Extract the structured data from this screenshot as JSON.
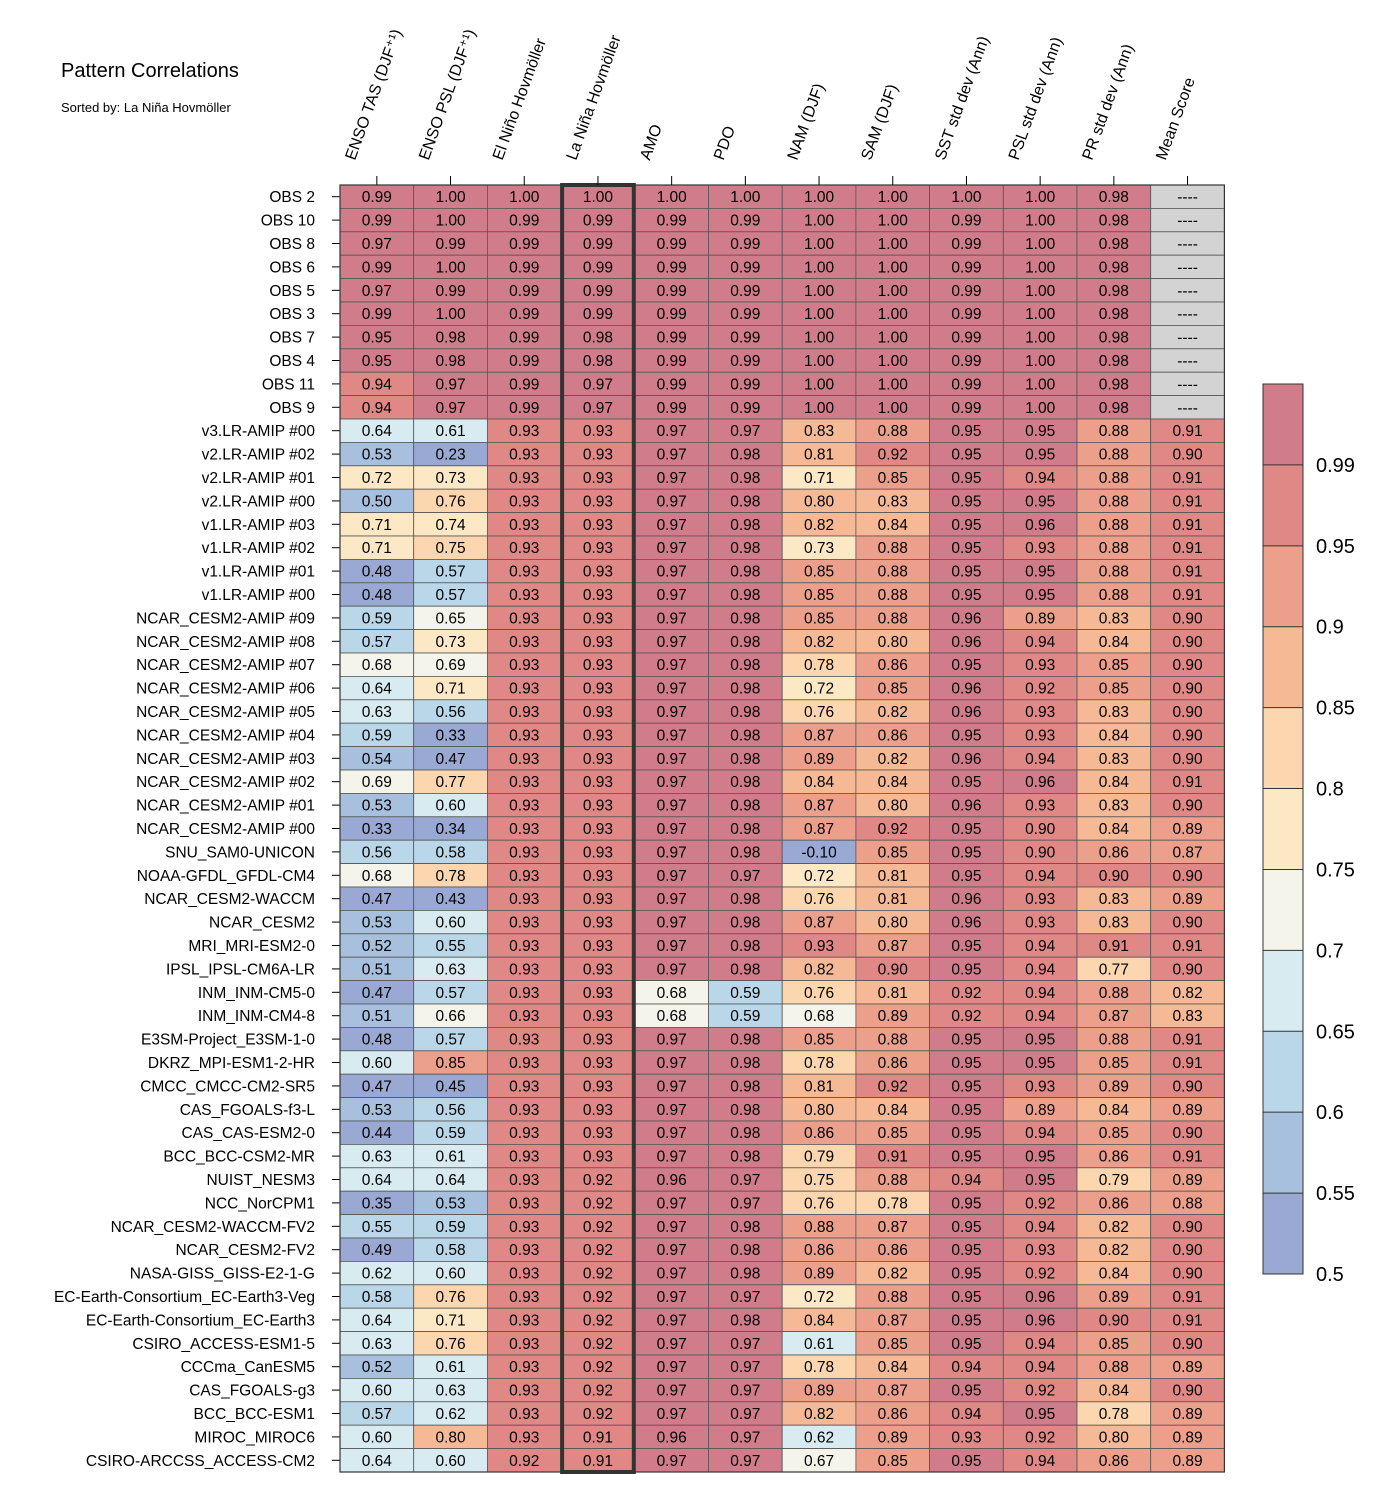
{
  "chart_data": {
    "type": "heatmap",
    "title": "Pattern Correlations",
    "subtitle": "Sorted by: La Niña Hovmöller",
    "columns": [
      "ENSO TAS (DJF⁺¹)",
      "ENSO PSL (DJF⁺¹)",
      "El Niño Hovmöller",
      "La Niña Hovmöller",
      "AMO",
      "PDO",
      "NAM (DJF)",
      "SAM (DJF)",
      "SST std dev (Ann)",
      "PSL std dev (Ann)",
      "PR std dev (Ann)",
      "Mean Score"
    ],
    "highlighted_column": "La Niña Hovmöller",
    "rows": [
      {
        "name": "OBS 2",
        "values": [
          "0.99",
          "1.00",
          "1.00",
          "1.00",
          "1.00",
          "1.00",
          "1.00",
          "1.00",
          "1.00",
          "1.00",
          "0.98",
          "----"
        ]
      },
      {
        "name": "OBS 10",
        "values": [
          "0.99",
          "1.00",
          "0.99",
          "0.99",
          "0.99",
          "0.99",
          "1.00",
          "1.00",
          "0.99",
          "1.00",
          "0.98",
          "----"
        ]
      },
      {
        "name": "OBS 8",
        "values": [
          "0.97",
          "0.99",
          "0.99",
          "0.99",
          "0.99",
          "0.99",
          "1.00",
          "1.00",
          "0.99",
          "1.00",
          "0.98",
          "----"
        ]
      },
      {
        "name": "OBS 6",
        "values": [
          "0.99",
          "1.00",
          "0.99",
          "0.99",
          "0.99",
          "0.99",
          "1.00",
          "1.00",
          "0.99",
          "1.00",
          "0.98",
          "----"
        ]
      },
      {
        "name": "OBS 5",
        "values": [
          "0.97",
          "0.99",
          "0.99",
          "0.99",
          "0.99",
          "0.99",
          "1.00",
          "1.00",
          "0.99",
          "1.00",
          "0.98",
          "----"
        ]
      },
      {
        "name": "OBS 3",
        "values": [
          "0.99",
          "1.00",
          "0.99",
          "0.99",
          "0.99",
          "0.99",
          "1.00",
          "1.00",
          "0.99",
          "1.00",
          "0.98",
          "----"
        ]
      },
      {
        "name": "OBS 7",
        "values": [
          "0.95",
          "0.98",
          "0.99",
          "0.98",
          "0.99",
          "0.99",
          "1.00",
          "1.00",
          "0.99",
          "1.00",
          "0.98",
          "----"
        ]
      },
      {
        "name": "OBS 4",
        "values": [
          "0.95",
          "0.98",
          "0.99",
          "0.98",
          "0.99",
          "0.99",
          "1.00",
          "1.00",
          "0.99",
          "1.00",
          "0.98",
          "----"
        ]
      },
      {
        "name": "OBS 11",
        "values": [
          "0.94",
          "0.97",
          "0.99",
          "0.97",
          "0.99",
          "0.99",
          "1.00",
          "1.00",
          "0.99",
          "1.00",
          "0.98",
          "----"
        ]
      },
      {
        "name": "OBS 9",
        "values": [
          "0.94",
          "0.97",
          "0.99",
          "0.97",
          "0.99",
          "0.99",
          "1.00",
          "1.00",
          "0.99",
          "1.00",
          "0.98",
          "----"
        ]
      },
      {
        "name": "v3.LR-AMIP  #00",
        "values": [
          "0.64",
          "0.61",
          "0.93",
          "0.93",
          "0.97",
          "0.97",
          "0.83",
          "0.88",
          "0.95",
          "0.95",
          "0.88",
          "0.91"
        ]
      },
      {
        "name": "v2.LR-AMIP  #02",
        "values": [
          "0.53",
          "0.23",
          "0.93",
          "0.93",
          "0.97",
          "0.98",
          "0.81",
          "0.92",
          "0.95",
          "0.95",
          "0.88",
          "0.90"
        ]
      },
      {
        "name": "v2.LR-AMIP  #01",
        "values": [
          "0.72",
          "0.73",
          "0.93",
          "0.93",
          "0.97",
          "0.98",
          "0.71",
          "0.85",
          "0.95",
          "0.94",
          "0.88",
          "0.91"
        ]
      },
      {
        "name": "v2.LR-AMIP  #00",
        "values": [
          "0.50",
          "0.76",
          "0.93",
          "0.93",
          "0.97",
          "0.98",
          "0.80",
          "0.83",
          "0.95",
          "0.95",
          "0.88",
          "0.91"
        ]
      },
      {
        "name": "v1.LR-AMIP  #03",
        "values": [
          "0.71",
          "0.74",
          "0.93",
          "0.93",
          "0.97",
          "0.98",
          "0.82",
          "0.84",
          "0.95",
          "0.96",
          "0.88",
          "0.91"
        ]
      },
      {
        "name": "v1.LR-AMIP  #02",
        "values": [
          "0.71",
          "0.75",
          "0.93",
          "0.93",
          "0.97",
          "0.98",
          "0.73",
          "0.88",
          "0.95",
          "0.93",
          "0.88",
          "0.91"
        ]
      },
      {
        "name": "v1.LR-AMIP  #01",
        "values": [
          "0.48",
          "0.57",
          "0.93",
          "0.93",
          "0.97",
          "0.98",
          "0.85",
          "0.88",
          "0.95",
          "0.95",
          "0.88",
          "0.91"
        ]
      },
      {
        "name": "v1.LR-AMIP  #00",
        "values": [
          "0.48",
          "0.57",
          "0.93",
          "0.93",
          "0.97",
          "0.98",
          "0.85",
          "0.88",
          "0.95",
          "0.95",
          "0.88",
          "0.91"
        ]
      },
      {
        "name": "NCAR_CESM2-AMIP  #09",
        "values": [
          "0.59",
          "0.65",
          "0.93",
          "0.93",
          "0.97",
          "0.98",
          "0.85",
          "0.88",
          "0.96",
          "0.89",
          "0.83",
          "0.90"
        ]
      },
      {
        "name": "NCAR_CESM2-AMIP  #08",
        "values": [
          "0.57",
          "0.73",
          "0.93",
          "0.93",
          "0.97",
          "0.98",
          "0.82",
          "0.80",
          "0.96",
          "0.94",
          "0.84",
          "0.90"
        ]
      },
      {
        "name": "NCAR_CESM2-AMIP  #07",
        "values": [
          "0.68",
          "0.69",
          "0.93",
          "0.93",
          "0.97",
          "0.98",
          "0.78",
          "0.86",
          "0.95",
          "0.93",
          "0.85",
          "0.90"
        ]
      },
      {
        "name": "NCAR_CESM2-AMIP  #06",
        "values": [
          "0.64",
          "0.71",
          "0.93",
          "0.93",
          "0.97",
          "0.98",
          "0.72",
          "0.85",
          "0.96",
          "0.92",
          "0.85",
          "0.90"
        ]
      },
      {
        "name": "NCAR_CESM2-AMIP  #05",
        "values": [
          "0.63",
          "0.56",
          "0.93",
          "0.93",
          "0.97",
          "0.98",
          "0.76",
          "0.82",
          "0.96",
          "0.93",
          "0.83",
          "0.90"
        ]
      },
      {
        "name": "NCAR_CESM2-AMIP  #04",
        "values": [
          "0.59",
          "0.33",
          "0.93",
          "0.93",
          "0.97",
          "0.98",
          "0.87",
          "0.86",
          "0.95",
          "0.93",
          "0.84",
          "0.90"
        ]
      },
      {
        "name": "NCAR_CESM2-AMIP  #03",
        "values": [
          "0.54",
          "0.47",
          "0.93",
          "0.93",
          "0.97",
          "0.98",
          "0.89",
          "0.82",
          "0.96",
          "0.94",
          "0.83",
          "0.90"
        ]
      },
      {
        "name": "NCAR_CESM2-AMIP  #02",
        "values": [
          "0.69",
          "0.77",
          "0.93",
          "0.93",
          "0.97",
          "0.98",
          "0.84",
          "0.84",
          "0.95",
          "0.96",
          "0.84",
          "0.91"
        ]
      },
      {
        "name": "NCAR_CESM2-AMIP  #01",
        "values": [
          "0.53",
          "0.60",
          "0.93",
          "0.93",
          "0.97",
          "0.98",
          "0.87",
          "0.80",
          "0.96",
          "0.93",
          "0.83",
          "0.90"
        ]
      },
      {
        "name": "NCAR_CESM2-AMIP  #00",
        "values": [
          "0.33",
          "0.34",
          "0.93",
          "0.93",
          "0.97",
          "0.98",
          "0.87",
          "0.92",
          "0.95",
          "0.90",
          "0.84",
          "0.89"
        ]
      },
      {
        "name": "SNU_SAM0-UNICON",
        "values": [
          "0.56",
          "0.58",
          "0.93",
          "0.93",
          "0.97",
          "0.98",
          "-0.10",
          "0.85",
          "0.95",
          "0.90",
          "0.86",
          "0.87"
        ]
      },
      {
        "name": "NOAA-GFDL_GFDL-CM4",
        "values": [
          "0.68",
          "0.78",
          "0.93",
          "0.93",
          "0.97",
          "0.97",
          "0.72",
          "0.81",
          "0.95",
          "0.94",
          "0.90",
          "0.90"
        ]
      },
      {
        "name": "NCAR_CESM2-WACCM",
        "values": [
          "0.47",
          "0.43",
          "0.93",
          "0.93",
          "0.97",
          "0.98",
          "0.76",
          "0.81",
          "0.96",
          "0.93",
          "0.83",
          "0.89"
        ]
      },
      {
        "name": "NCAR_CESM2",
        "values": [
          "0.53",
          "0.60",
          "0.93",
          "0.93",
          "0.97",
          "0.98",
          "0.87",
          "0.80",
          "0.96",
          "0.93",
          "0.83",
          "0.90"
        ]
      },
      {
        "name": "MRI_MRI-ESM2-0",
        "values": [
          "0.52",
          "0.55",
          "0.93",
          "0.93",
          "0.97",
          "0.98",
          "0.93",
          "0.87",
          "0.95",
          "0.94",
          "0.91",
          "0.91"
        ]
      },
      {
        "name": "IPSL_IPSL-CM6A-LR",
        "values": [
          "0.51",
          "0.63",
          "0.93",
          "0.93",
          "0.97",
          "0.98",
          "0.82",
          "0.90",
          "0.95",
          "0.94",
          "0.77",
          "0.90"
        ]
      },
      {
        "name": "INM_INM-CM5-0",
        "values": [
          "0.47",
          "0.57",
          "0.93",
          "0.93",
          "0.68",
          "0.59",
          "0.76",
          "0.81",
          "0.92",
          "0.94",
          "0.88",
          "0.82"
        ]
      },
      {
        "name": "INM_INM-CM4-8",
        "values": [
          "0.51",
          "0.66",
          "0.93",
          "0.93",
          "0.68",
          "0.59",
          "0.68",
          "0.89",
          "0.92",
          "0.94",
          "0.87",
          "0.83"
        ]
      },
      {
        "name": "E3SM-Project_E3SM-1-0",
        "values": [
          "0.48",
          "0.57",
          "0.93",
          "0.93",
          "0.97",
          "0.98",
          "0.85",
          "0.88",
          "0.95",
          "0.95",
          "0.88",
          "0.91"
        ]
      },
      {
        "name": "DKRZ_MPI-ESM1-2-HR",
        "values": [
          "0.60",
          "0.85",
          "0.93",
          "0.93",
          "0.97",
          "0.98",
          "0.78",
          "0.86",
          "0.95",
          "0.95",
          "0.85",
          "0.91"
        ]
      },
      {
        "name": "CMCC_CMCC-CM2-SR5",
        "values": [
          "0.47",
          "0.45",
          "0.93",
          "0.93",
          "0.97",
          "0.98",
          "0.81",
          "0.92",
          "0.95",
          "0.93",
          "0.89",
          "0.90"
        ]
      },
      {
        "name": "CAS_FGOALS-f3-L",
        "values": [
          "0.53",
          "0.56",
          "0.93",
          "0.93",
          "0.97",
          "0.98",
          "0.80",
          "0.84",
          "0.95",
          "0.89",
          "0.84",
          "0.89"
        ]
      },
      {
        "name": "CAS_CAS-ESM2-0",
        "values": [
          "0.44",
          "0.59",
          "0.93",
          "0.93",
          "0.97",
          "0.98",
          "0.86",
          "0.85",
          "0.95",
          "0.94",
          "0.85",
          "0.90"
        ]
      },
      {
        "name": "BCC_BCC-CSM2-MR",
        "values": [
          "0.63",
          "0.61",
          "0.93",
          "0.93",
          "0.97",
          "0.98",
          "0.79",
          "0.91",
          "0.95",
          "0.95",
          "0.86",
          "0.91"
        ]
      },
      {
        "name": "NUIST_NESM3",
        "values": [
          "0.64",
          "0.64",
          "0.93",
          "0.92",
          "0.96",
          "0.97",
          "0.75",
          "0.88",
          "0.94",
          "0.95",
          "0.79",
          "0.89"
        ]
      },
      {
        "name": "NCC_NorCPM1",
        "values": [
          "0.35",
          "0.53",
          "0.93",
          "0.92",
          "0.97",
          "0.97",
          "0.76",
          "0.78",
          "0.95",
          "0.92",
          "0.86",
          "0.88"
        ]
      },
      {
        "name": "NCAR_CESM2-WACCM-FV2",
        "values": [
          "0.55",
          "0.59",
          "0.93",
          "0.92",
          "0.97",
          "0.98",
          "0.88",
          "0.87",
          "0.95",
          "0.94",
          "0.82",
          "0.90"
        ]
      },
      {
        "name": "NCAR_CESM2-FV2",
        "values": [
          "0.49",
          "0.58",
          "0.93",
          "0.92",
          "0.97",
          "0.98",
          "0.86",
          "0.86",
          "0.95",
          "0.93",
          "0.82",
          "0.90"
        ]
      },
      {
        "name": "NASA-GISS_GISS-E2-1-G",
        "values": [
          "0.62",
          "0.60",
          "0.93",
          "0.92",
          "0.97",
          "0.98",
          "0.89",
          "0.82",
          "0.95",
          "0.92",
          "0.84",
          "0.90"
        ]
      },
      {
        "name": "EC-Earth-Consortium_EC-Earth3-Veg",
        "values": [
          "0.58",
          "0.76",
          "0.93",
          "0.92",
          "0.97",
          "0.97",
          "0.72",
          "0.88",
          "0.95",
          "0.96",
          "0.89",
          "0.91"
        ]
      },
      {
        "name": "EC-Earth-Consortium_EC-Earth3",
        "values": [
          "0.64",
          "0.71",
          "0.93",
          "0.92",
          "0.97",
          "0.98",
          "0.84",
          "0.87",
          "0.95",
          "0.96",
          "0.90",
          "0.91"
        ]
      },
      {
        "name": "CSIRO_ACCESS-ESM1-5",
        "values": [
          "0.63",
          "0.76",
          "0.93",
          "0.92",
          "0.97",
          "0.97",
          "0.61",
          "0.85",
          "0.95",
          "0.94",
          "0.85",
          "0.90"
        ]
      },
      {
        "name": "CCCma_CanESM5",
        "values": [
          "0.52",
          "0.61",
          "0.93",
          "0.92",
          "0.97",
          "0.97",
          "0.78",
          "0.84",
          "0.94",
          "0.94",
          "0.88",
          "0.89"
        ]
      },
      {
        "name": "CAS_FGOALS-g3",
        "values": [
          "0.60",
          "0.63",
          "0.93",
          "0.92",
          "0.97",
          "0.97",
          "0.89",
          "0.87",
          "0.95",
          "0.92",
          "0.84",
          "0.90"
        ]
      },
      {
        "name": "BCC_BCC-ESM1",
        "values": [
          "0.57",
          "0.62",
          "0.93",
          "0.92",
          "0.97",
          "0.97",
          "0.82",
          "0.86",
          "0.94",
          "0.95",
          "0.78",
          "0.89"
        ]
      },
      {
        "name": "MIROC_MIROC6",
        "values": [
          "0.60",
          "0.80",
          "0.93",
          "0.91",
          "0.96",
          "0.97",
          "0.62",
          "0.89",
          "0.93",
          "0.92",
          "0.80",
          "0.89"
        ]
      },
      {
        "name": "CSIRO-ARCCSS_ACCESS-CM2",
        "values": [
          "0.64",
          "0.60",
          "0.92",
          "0.91",
          "0.97",
          "0.97",
          "0.67",
          "0.85",
          "0.95",
          "0.94",
          "0.86",
          "0.89"
        ]
      }
    ],
    "colorbar": {
      "tick_labels": [
        "0.99",
        "0.95",
        "0.9",
        "0.85",
        "0.8",
        "0.75",
        "0.7",
        "0.65",
        "0.6",
        "0.55",
        "0.5"
      ],
      "levels": [
        0.5,
        0.55,
        0.6,
        0.65,
        0.7,
        0.75,
        0.8,
        0.85,
        0.9,
        0.95,
        0.99
      ],
      "colors": [
        "#9aa9d3",
        "#a7c0de",
        "#bad7e9",
        "#d7ebf1",
        "#f4f4ea",
        "#fde8c6",
        "#fcd6ae",
        "#f6b996",
        "#eca08c",
        "#e08886",
        "#d17c8a"
      ],
      "missing_color": "#d3d3d3",
      "highlight_border_color": "#333333"
    }
  }
}
